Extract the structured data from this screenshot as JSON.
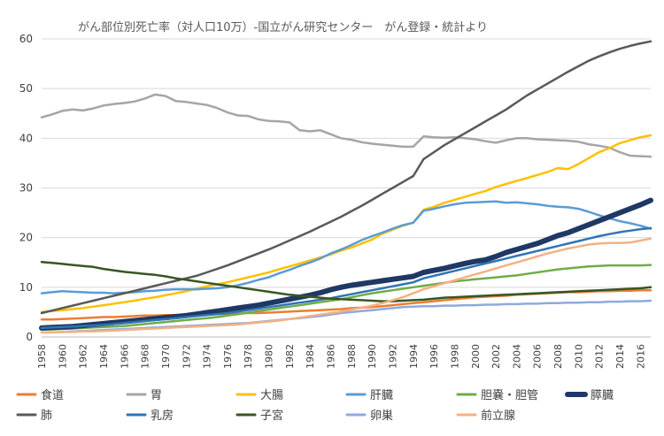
{
  "chart_data": {
    "type": "line",
    "title": "がん部位別死亡率（対人口10万）-国立がん研究センター　がん登録・統計より",
    "xlabel": "",
    "ylabel": "",
    "ylim": [
      0,
      60
    ],
    "yticks": [
      0,
      10,
      20,
      30,
      40,
      50,
      60
    ],
    "xticks": [
      1958,
      1960,
      1962,
      1964,
      1966,
      1968,
      1970,
      1972,
      1974,
      1976,
      1978,
      1980,
      1982,
      1984,
      1986,
      1988,
      1990,
      1992,
      1994,
      1996,
      1998,
      2000,
      2002,
      2004,
      2006,
      2008,
      2010,
      2012,
      2014,
      2016
    ],
    "x_start": 1958,
    "x_end": 2017,
    "grid": true,
    "legend": "bottom",
    "series": [
      {
        "name": "食道",
        "color": "#ED7D31",
        "width": 2.5,
        "values": [
          3.5,
          3.5,
          3.6,
          3.7,
          3.8,
          3.9,
          4.0,
          4.0,
          4.1,
          4.2,
          4.3,
          4.3,
          4.4,
          4.4,
          4.5,
          4.5,
          4.6,
          4.6,
          4.7,
          4.7,
          4.8,
          4.8,
          4.9,
          5.0,
          5.1,
          5.2,
          5.3,
          5.4,
          5.5,
          5.6,
          5.8,
          5.9,
          6.0,
          6.2,
          6.4,
          6.6,
          6.8,
          7.0,
          7.2,
          7.4,
          7.6,
          7.8,
          8.0,
          8.1,
          8.2,
          8.3,
          8.5,
          8.6,
          8.7,
          8.8,
          8.9,
          9.0,
          9.0,
          9.1,
          9.2,
          9.2,
          9.3,
          9.3,
          9.4,
          9.4
        ]
      },
      {
        "name": "胃",
        "color": "#A5A5A5",
        "width": 2.5,
        "values": [
          44.2,
          44.8,
          45.5,
          45.8,
          45.6,
          46.0,
          46.6,
          46.9,
          47.1,
          47.4,
          48.0,
          48.8,
          48.5,
          47.5,
          47.3,
          47.0,
          46.7,
          46.1,
          45.2,
          44.6,
          44.5,
          43.8,
          43.5,
          43.4,
          43.2,
          41.6,
          41.4,
          41.6,
          40.8,
          40.0,
          39.7,
          39.2,
          38.9,
          38.7,
          38.5,
          38.3,
          38.3,
          40.4,
          40.2,
          40.1,
          40.2,
          40.0,
          39.8,
          39.4,
          39.1,
          39.6,
          40.0,
          40.0,
          39.8,
          39.7,
          39.6,
          39.5,
          39.3,
          38.8,
          38.5,
          38.1,
          37.2,
          36.5,
          36.4,
          36.3
        ]
      },
      {
        "name": "大腸",
        "color": "#FFC000",
        "width": 2.5,
        "values": [
          5.0,
          5.2,
          5.4,
          5.6,
          5.8,
          6.1,
          6.4,
          6.7,
          7.0,
          7.3,
          7.7,
          8.0,
          8.4,
          8.8,
          9.2,
          9.7,
          10.2,
          10.6,
          11.0,
          11.5,
          12.0,
          12.5,
          13.0,
          13.6,
          14.2,
          14.8,
          15.4,
          16.0,
          16.6,
          17.4,
          18.0,
          18.8,
          19.6,
          20.8,
          21.6,
          22.4,
          23.0,
          25.6,
          26.2,
          27.0,
          27.6,
          28.2,
          28.8,
          29.4,
          30.2,
          30.8,
          31.4,
          32.0,
          32.6,
          33.2,
          34.0,
          33.8,
          34.8,
          36.0,
          37.2,
          38.0,
          39.0,
          39.6,
          40.2,
          40.6
        ]
      },
      {
        "name": "肝臓",
        "color": "#5B9BD5",
        "width": 2.5,
        "values": [
          8.8,
          9.0,
          9.2,
          9.1,
          9.0,
          8.9,
          8.9,
          8.8,
          8.9,
          9.0,
          9.2,
          9.3,
          9.5,
          9.6,
          9.6,
          9.6,
          9.7,
          9.8,
          10.0,
          10.4,
          10.9,
          11.5,
          12.0,
          12.8,
          13.5,
          14.3,
          15.0,
          15.8,
          16.8,
          17.6,
          18.5,
          19.5,
          20.3,
          21.0,
          21.8,
          22.5,
          23.0,
          25.4,
          25.8,
          26.3,
          26.7,
          27.0,
          27.1,
          27.2,
          27.3,
          27.0,
          27.1,
          26.9,
          26.7,
          26.4,
          26.2,
          26.1,
          25.8,
          25.2,
          24.5,
          23.9,
          23.3,
          22.9,
          22.4,
          21.8
        ]
      },
      {
        "name": "胆嚢・胆管",
        "color": "#70AD47",
        "width": 2.5,
        "values": [
          1.5,
          1.5,
          1.6,
          1.7,
          1.8,
          1.9,
          2.0,
          2.1,
          2.2,
          2.4,
          2.6,
          2.8,
          3.0,
          3.2,
          3.4,
          3.6,
          3.8,
          4.0,
          4.3,
          4.6,
          4.9,
          5.2,
          5.5,
          5.8,
          6.1,
          6.4,
          6.7,
          7.0,
          7.3,
          7.6,
          8.0,
          8.4,
          8.8,
          9.1,
          9.4,
          9.7,
          10.0,
          10.3,
          10.6,
          10.9,
          11.2,
          11.4,
          11.6,
          11.8,
          12.0,
          12.2,
          12.4,
          12.7,
          13.0,
          13.3,
          13.6,
          13.8,
          14.0,
          14.2,
          14.3,
          14.4,
          14.4,
          14.4,
          14.4,
          14.5
        ]
      },
      {
        "name": "膵臓",
        "color": "#1F3864",
        "width": 6,
        "values": [
          1.8,
          1.9,
          2.0,
          2.1,
          2.3,
          2.5,
          2.7,
          2.9,
          3.1,
          3.3,
          3.5,
          3.7,
          3.9,
          4.1,
          4.3,
          4.6,
          4.9,
          5.2,
          5.5,
          5.8,
          6.1,
          6.4,
          6.8,
          7.2,
          7.6,
          8.0,
          8.4,
          8.9,
          9.5,
          10.0,
          10.4,
          10.7,
          11.0,
          11.3,
          11.6,
          11.9,
          12.2,
          13.0,
          13.4,
          13.8,
          14.3,
          14.8,
          15.2,
          15.5,
          16.2,
          17.0,
          17.6,
          18.2,
          18.8,
          19.6,
          20.4,
          21.0,
          21.8,
          22.6,
          23.4,
          24.2,
          25.0,
          25.8,
          26.6,
          27.5
        ]
      },
      {
        "name": "肺",
        "color": "#595959",
        "width": 2.5,
        "values": [
          4.8,
          5.3,
          5.8,
          6.3,
          6.8,
          7.3,
          7.8,
          8.3,
          8.8,
          9.3,
          9.8,
          10.3,
          10.8,
          11.3,
          11.8,
          12.3,
          13.0,
          13.7,
          14.4,
          15.2,
          16.0,
          16.8,
          17.6,
          18.5,
          19.4,
          20.3,
          21.2,
          22.2,
          23.2,
          24.2,
          25.3,
          26.4,
          27.6,
          28.8,
          30.0,
          31.2,
          32.4,
          35.8,
          37.2,
          38.6,
          39.8,
          41.0,
          42.2,
          43.4,
          44.6,
          45.8,
          47.2,
          48.6,
          49.8,
          51.0,
          52.2,
          53.4,
          54.5,
          55.6,
          56.5,
          57.3,
          58.0,
          58.6,
          59.1,
          59.5
        ]
      },
      {
        "name": "乳房",
        "color": "#2E75B6",
        "width": 2.5,
        "values": [
          1.8,
          1.9,
          2.0,
          2.1,
          2.2,
          2.3,
          2.4,
          2.6,
          2.8,
          3.0,
          3.2,
          3.4,
          3.6,
          3.8,
          4.0,
          4.2,
          4.4,
          4.6,
          4.8,
          5.1,
          5.4,
          5.7,
          6.0,
          6.3,
          6.6,
          6.9,
          7.2,
          7.5,
          7.8,
          8.2,
          8.6,
          9.0,
          9.4,
          9.8,
          10.2,
          10.6,
          11.0,
          11.8,
          12.3,
          12.8,
          13.3,
          13.8,
          14.3,
          14.8,
          15.3,
          15.8,
          16.3,
          16.8,
          17.3,
          17.8,
          18.3,
          18.8,
          19.3,
          19.8,
          20.3,
          20.7,
          21.1,
          21.4,
          21.7,
          21.9
        ]
      },
      {
        "name": "子宮",
        "color": "#375623",
        "width": 2.5,
        "values": [
          15.1,
          14.9,
          14.7,
          14.5,
          14.3,
          14.1,
          13.7,
          13.4,
          13.1,
          12.9,
          12.7,
          12.5,
          12.2,
          11.8,
          11.5,
          11.2,
          10.9,
          10.6,
          10.3,
          10.0,
          9.7,
          9.4,
          9.1,
          8.8,
          8.5,
          8.3,
          8.1,
          7.9,
          7.7,
          7.6,
          7.5,
          7.4,
          7.3,
          7.2,
          7.2,
          7.3,
          7.4,
          7.5,
          7.7,
          7.9,
          8.0,
          8.1,
          8.2,
          8.3,
          8.4,
          8.5,
          8.6,
          8.7,
          8.8,
          8.9,
          9.0,
          9.1,
          9.2,
          9.3,
          9.4,
          9.5,
          9.6,
          9.7,
          9.8,
          10.0
        ]
      },
      {
        "name": "卵巣",
        "color": "#8FAADC",
        "width": 2.5,
        "values": [
          0.9,
          0.9,
          1.0,
          1.1,
          1.2,
          1.3,
          1.4,
          1.5,
          1.6,
          1.7,
          1.8,
          1.9,
          2.0,
          2.1,
          2.2,
          2.3,
          2.4,
          2.5,
          2.6,
          2.7,
          2.8,
          3.0,
          3.2,
          3.4,
          3.6,
          3.8,
          4.0,
          4.2,
          4.5,
          4.8,
          5.0,
          5.2,
          5.4,
          5.6,
          5.8,
          6.0,
          6.1,
          6.2,
          6.2,
          6.3,
          6.3,
          6.4,
          6.4,
          6.5,
          6.5,
          6.6,
          6.6,
          6.7,
          6.7,
          6.8,
          6.8,
          6.9,
          6.9,
          7.0,
          7.0,
          7.1,
          7.1,
          7.2,
          7.2,
          7.3
        ]
      },
      {
        "name": "前立腺",
        "color": "#F4B183",
        "width": 2.5,
        "values": [
          0.9,
          0.9,
          1.0,
          1.0,
          1.1,
          1.1,
          1.2,
          1.3,
          1.4,
          1.5,
          1.6,
          1.7,
          1.8,
          1.9,
          2.0,
          2.1,
          2.2,
          2.3,
          2.4,
          2.5,
          2.7,
          2.9,
          3.1,
          3.3,
          3.6,
          3.9,
          4.2,
          4.5,
          4.8,
          5.1,
          5.5,
          5.9,
          6.3,
          6.8,
          7.4,
          8.0,
          8.8,
          9.6,
          10.2,
          10.8,
          11.4,
          12.0,
          12.6,
          13.2,
          13.8,
          14.4,
          15.0,
          15.6,
          16.2,
          16.8,
          17.3,
          17.8,
          18.2,
          18.6,
          18.8,
          18.9,
          18.9,
          19.0,
          19.4,
          19.8
        ]
      }
    ]
  }
}
